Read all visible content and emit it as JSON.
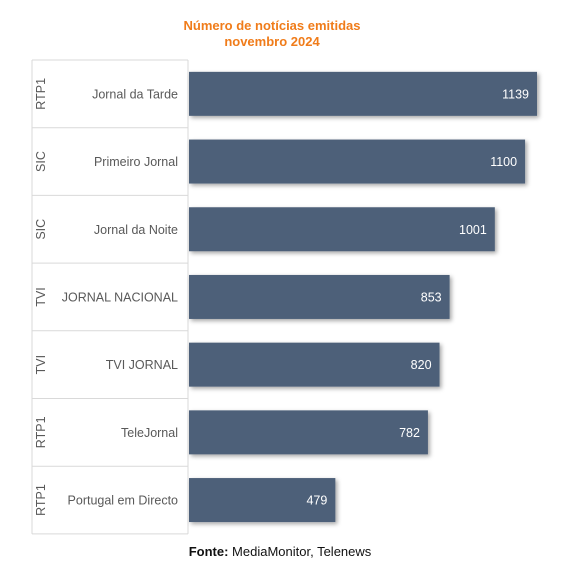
{
  "chart_data": {
    "type": "bar",
    "orientation": "horizontal",
    "title_line1": "Número de notícias emitidas",
    "title_line2": "novembro 2024",
    "rows": [
      {
        "channel": "RTP1",
        "program": "Jornal da Tarde",
        "value": 1139
      },
      {
        "channel": "SIC",
        "program": "Primeiro Jornal",
        "value": 1100
      },
      {
        "channel": "SIC",
        "program": "Jornal da Noite",
        "value": 1001
      },
      {
        "channel": "TVI",
        "program": "JORNAL NACIONAL",
        "value": 853
      },
      {
        "channel": "TVI",
        "program": "TVI JORNAL",
        "value": 820
      },
      {
        "channel": "RTP1",
        "program": "TeleJornal",
        "value": 782
      },
      {
        "channel": "RTP1",
        "program": "Portugal em Directo",
        "value": 479
      }
    ],
    "bar_color": "#4e6079",
    "title_color": "#f07c1a"
  },
  "footer": {
    "label": "Fonte:",
    "text": "MediaMonitor, Telenews"
  }
}
